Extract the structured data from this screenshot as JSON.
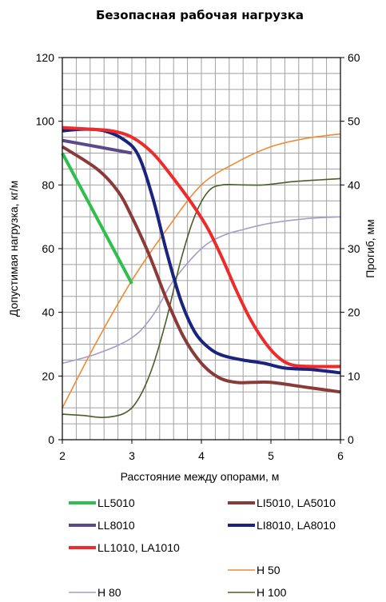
{
  "chart_data": {
    "type": "line",
    "title": "Безопасная рабочая нагрузка",
    "xlabel": "Расстояние между опорами, м",
    "ylabel": "Допустимая нагрузка,  кг/м",
    "y2label": "Прогиб, мм",
    "xlim": [
      2,
      6
    ],
    "ylim": [
      0,
      120
    ],
    "y2lim": [
      0,
      60
    ],
    "xticks": [
      "2",
      "3",
      "4",
      "5",
      "6"
    ],
    "yticks": [
      "0",
      "20",
      "40",
      "60",
      "80",
      "100",
      "120"
    ],
    "y2ticks": [
      "0",
      "10",
      "20",
      "30",
      "40",
      "50",
      "60"
    ],
    "grid": true,
    "legend_position": "bottom",
    "series": [
      {
        "name": "LL5010",
        "color": "#2fbf4e",
        "width": 4,
        "axis": "left",
        "x": [
          2,
          3
        ],
        "y": [
          90,
          49
        ]
      },
      {
        "name": "LI5010, LA5010",
        "color": "#8b3a3a",
        "width": 4,
        "axis": "left",
        "x": [
          2,
          2.5,
          2.8,
          3,
          3.25,
          3.5,
          3.75,
          4,
          4.25,
          4.5,
          4.75,
          5,
          5.5,
          6
        ],
        "y": [
          92,
          85,
          78,
          70,
          58,
          44,
          32,
          24,
          19.5,
          18,
          18,
          18,
          16.5,
          15
        ]
      },
      {
        "name": "LL8010",
        "color": "#5a4a8a",
        "width": 4,
        "axis": "left",
        "x": [
          2,
          2.5,
          3
        ],
        "y": [
          94,
          92,
          90
        ]
      },
      {
        "name": "LI8010, LA8010",
        "color": "#1a237e",
        "width": 4,
        "axis": "left",
        "x": [
          2,
          2.3,
          2.6,
          2.9,
          3.1,
          3.3,
          3.5,
          3.7,
          3.9,
          4.1,
          4.3,
          4.6,
          4.9,
          5.2,
          5.6,
          6
        ],
        "y": [
          97,
          97.5,
          97,
          94,
          89,
          76,
          59,
          44,
          34,
          29,
          26.5,
          25,
          24,
          22.5,
          22,
          21
        ]
      },
      {
        "name": "LL1010, LA1010",
        "color": "#ee2a2a",
        "width": 4,
        "axis": "left",
        "x": [
          2,
          2.4,
          2.7,
          3,
          3.3,
          3.6,
          3.9,
          4.1,
          4.3,
          4.5,
          4.7,
          4.9,
          5.1,
          5.3,
          5.6,
          6
        ],
        "y": [
          98,
          97.5,
          97,
          95,
          90,
          82,
          73,
          66,
          57,
          47,
          38,
          31,
          26,
          23.5,
          23,
          23
        ]
      },
      {
        "name": "H 50",
        "color": "#f08a30",
        "width": 1.6,
        "axis": "right",
        "x": [
          2,
          2.5,
          3,
          3.5,
          4,
          4.5,
          5,
          5.5,
          6
        ],
        "y": [
          5,
          15.5,
          25,
          33,
          40,
          43.5,
          46,
          47.3,
          48
        ]
      },
      {
        "name": "H 80",
        "color": "#a89cc8",
        "width": 1.6,
        "axis": "right",
        "x": [
          2,
          2.5,
          3,
          3.3,
          3.6,
          4,
          4.3,
          4.6,
          5,
          5.5,
          6
        ],
        "y": [
          12,
          13.5,
          16,
          19.5,
          25,
          30,
          32,
          33,
          34,
          34.7,
          35
        ]
      },
      {
        "name": "H 100",
        "color": "#4a5e28",
        "width": 1.6,
        "axis": "right",
        "x": [
          2,
          2.3,
          2.6,
          2.9,
          3.1,
          3.3,
          3.5,
          3.7,
          3.9,
          4.1,
          4.3,
          4.6,
          4.9,
          5.3,
          5.7,
          6
        ],
        "y": [
          4,
          3.8,
          3.5,
          4.2,
          6.5,
          11.5,
          19,
          28,
          35,
          39,
          40,
          40,
          40,
          40.5,
          40.8,
          41
        ]
      }
    ]
  }
}
